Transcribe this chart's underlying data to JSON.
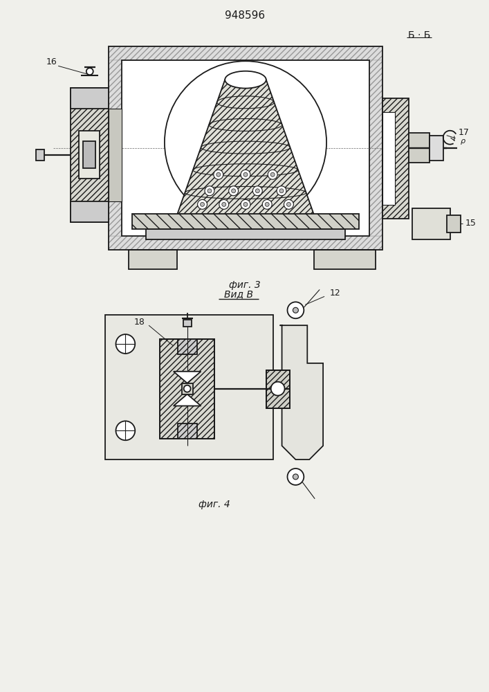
{
  "title": "948596",
  "fig3_label": "фиг. 3",
  "fig4_label": "фиг. 4",
  "section_label": "Б · Б",
  "view_label": "Вид В",
  "bg_color": "#f0f0eb",
  "line_color": "#1a1a1a",
  "fig_width": 7.07,
  "fig_height": 10.0,
  "dpi": 100
}
